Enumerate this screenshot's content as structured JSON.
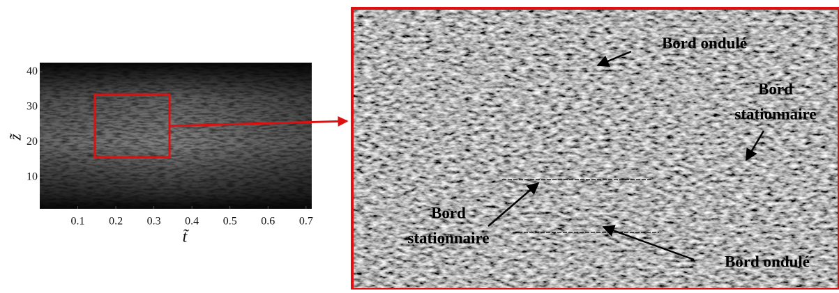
{
  "left_plot": {
    "xlim": [
      0,
      0.715
    ],
    "xticks": [
      0.1,
      0.2,
      0.3,
      0.4,
      0.5,
      0.6,
      0.7
    ],
    "ylim": [
      1.1,
      42.6
    ],
    "yticks": [
      10,
      20,
      30,
      40
    ],
    "xlabel": "t̃",
    "ylabel": "z̃"
  },
  "annotations": [
    {
      "lines": [
        "Bord ondulé"
      ]
    },
    {
      "lines": [
        "Bord",
        "stationnaire"
      ]
    },
    {
      "lines": [
        "Bord",
        "stationnaire"
      ]
    },
    {
      "lines": [
        "Bord ondulé"
      ]
    }
  ]
}
